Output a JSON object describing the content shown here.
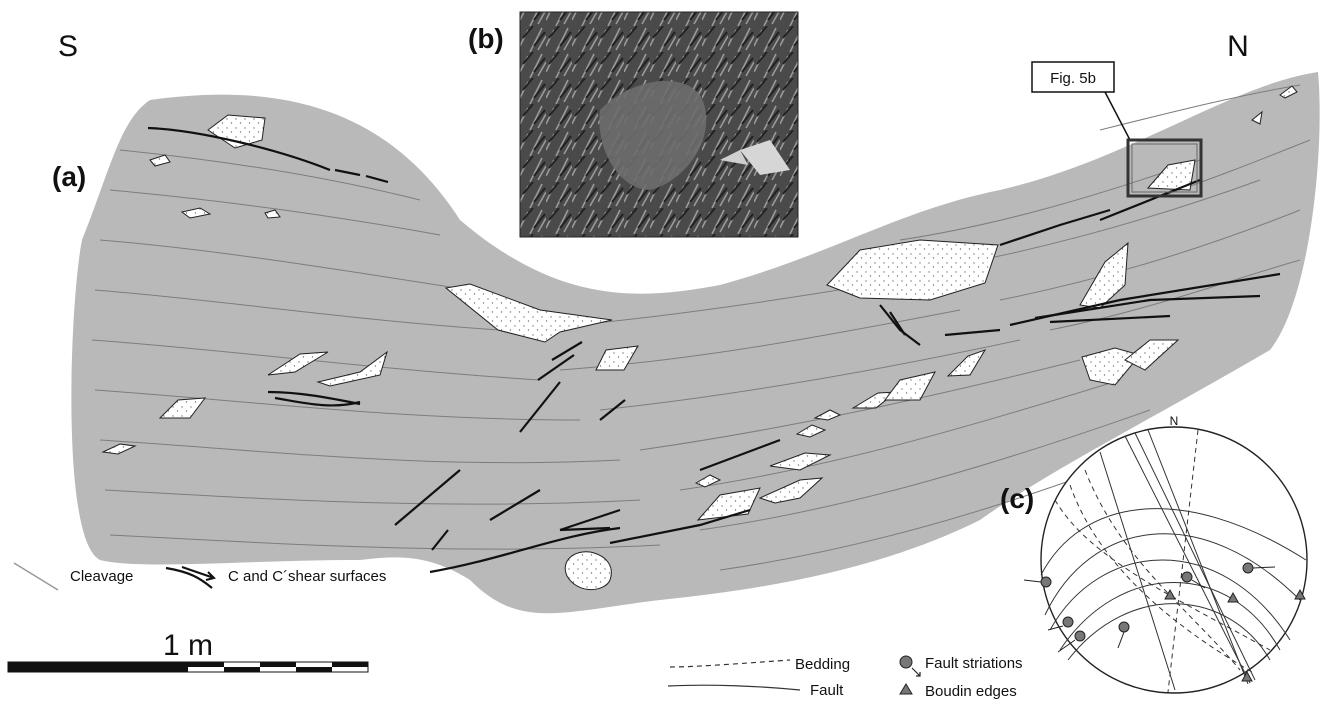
{
  "labels": {
    "south": "S",
    "north": "N",
    "panel_a": "(a)",
    "panel_b": "(b)",
    "panel_c": "(c)",
    "fig_callout": "Fig. 5b",
    "stereonet_north": "N"
  },
  "legend": {
    "cleavage": "Cleavage",
    "shear": "C and C´shear surfaces",
    "bedding": "Bedding",
    "fault": "Fault",
    "fault_striations": "Fault striations",
    "boudin_edges": "Boudin edges"
  },
  "scale_bar": {
    "label": "1 m"
  },
  "colors": {
    "outcrop_fill": "#b9b9b9",
    "lens_fill": "#ffffff",
    "line": "#222222",
    "symbol": "#777777"
  }
}
